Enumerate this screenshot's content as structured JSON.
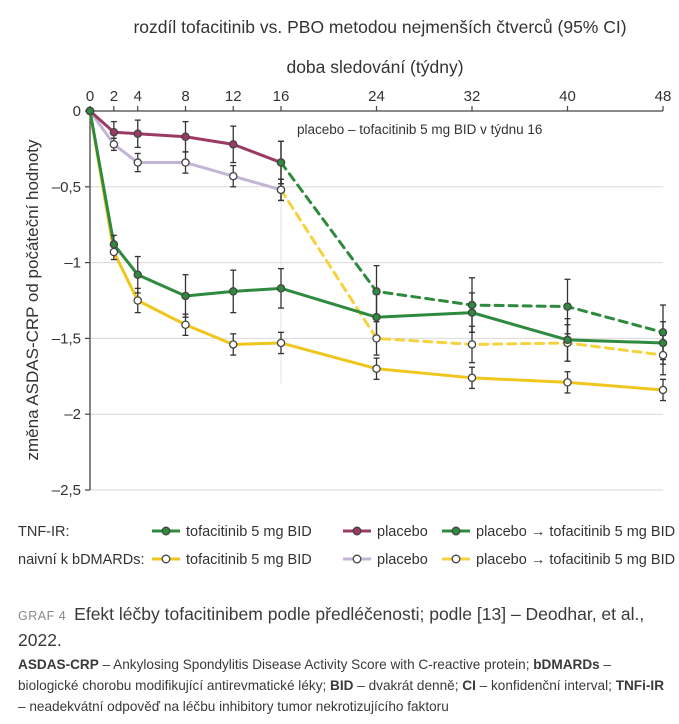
{
  "chart_data": {
    "type": "line",
    "title": "rozdíl tofacitinib vs. PBO metodou nejmenších čtverců (95% CI)",
    "xlabel": "doba sledování (týdny)",
    "ylabel": "změna ASDAS-CRP od počáteční hodnoty",
    "xlim": [
      0,
      48
    ],
    "ylim": [
      -2.5,
      0
    ],
    "x_ticks": [
      0,
      2,
      4,
      8,
      12,
      16,
      24,
      32,
      40,
      48
    ],
    "y_ticks": [
      0,
      -0.5,
      -1,
      -1.5,
      -2,
      -2.5
    ],
    "y_tick_labels": [
      "0",
      "–0,5",
      "–1",
      "–1,5",
      "–2",
      "–2,5"
    ],
    "annotation": "placebo – tofacitinib 5 mg BID v týdnu 16",
    "series": [
      {
        "name": "TNF-IR: tofacitinib 5 mg BID",
        "group": "TNF-IR",
        "color": "#2e8b3e",
        "dashed": false,
        "marker": "#2e8b3e",
        "x": [
          0,
          2,
          4,
          8,
          12,
          16,
          24,
          32,
          40,
          48
        ],
        "y": [
          0,
          -0.88,
          -1.08,
          -1.22,
          -1.19,
          -1.17,
          -1.36,
          -1.33,
          -1.51,
          -1.53
        ],
        "err": [
          0,
          0.06,
          0.12,
          0.14,
          0.14,
          0.13,
          0.15,
          0.13,
          0.14,
          0.14
        ]
      },
      {
        "name": "TNF-IR: placebo",
        "group": "TNF-IR",
        "color": "#9b3b63",
        "dashed": false,
        "marker": "#9b3b63",
        "x": [
          0,
          2,
          4,
          8,
          12,
          16
        ],
        "y": [
          0,
          -0.14,
          -0.15,
          -0.17,
          -0.22,
          -0.34
        ],
        "err": [
          0,
          0.07,
          0.09,
          0.1,
          0.12,
          0.14
        ]
      },
      {
        "name": "TNF-IR: placebo → tofacitinib 5 mg BID",
        "group": "TNF-IR",
        "color": "#2e8b3e",
        "dashed": true,
        "marker": "#2e8b3e",
        "x": [
          16,
          24,
          32,
          40,
          48
        ],
        "y": [
          -0.34,
          -1.19,
          -1.28,
          -1.29,
          -1.46
        ],
        "err": [
          0.14,
          0.17,
          0.18,
          0.18,
          0.18
        ]
      },
      {
        "name": "naivní k bDMARDs: tofacitinib 5 mg BID",
        "group": "naivní k bDMARDs",
        "color": "#f0c61c",
        "dashed": false,
        "marker": "#ffffff",
        "x": [
          0,
          2,
          4,
          8,
          12,
          16,
          24,
          32,
          40,
          48
        ],
        "y": [
          0,
          -0.93,
          -1.25,
          -1.41,
          -1.54,
          -1.53,
          -1.7,
          -1.76,
          -1.79,
          -1.84
        ],
        "err": [
          0,
          0.05,
          0.08,
          0.07,
          0.07,
          0.07,
          0.07,
          0.07,
          0.07,
          0.07
        ]
      },
      {
        "name": "naivní k bDMARDs: placebo",
        "group": "naivní k bDMARDs",
        "color": "#c4b4d6",
        "dashed": false,
        "marker": "#ffffff",
        "x": [
          0,
          2,
          4,
          8,
          12,
          16
        ],
        "y": [
          0,
          -0.22,
          -0.34,
          -0.34,
          -0.43,
          -0.52
        ],
        "err": [
          0,
          0.04,
          0.06,
          0.07,
          0.07,
          0.07
        ]
      },
      {
        "name": "naivní k bDMARDs: placebo → tofacitinib 5 mg BID",
        "group": "naivní k bDMARDs",
        "color": "#f5d23e",
        "dashed": true,
        "marker": "#ffffff",
        "x": [
          16,
          24,
          32,
          40,
          48
        ],
        "y": [
          -0.52,
          -1.5,
          -1.54,
          -1.53,
          -1.61
        ],
        "err": [
          0.07,
          0.11,
          0.12,
          0.12,
          0.13
        ]
      }
    ],
    "legend": {
      "placement": "bottom",
      "rows": [
        {
          "label": "TNF-IR:",
          "entries": [
            {
              "text": "tofacitinib 5 mg BID",
              "color": "#2e8b3e",
              "fill": "#2e8b3e"
            },
            {
              "text": "placebo",
              "color": "#9b3b63",
              "fill": "#9b3b63"
            },
            {
              "text": "placebo → tofacitinib 5 mg BID",
              "color": "#2e8b3e",
              "fill": "#2e8b3e"
            }
          ]
        },
        {
          "label": "naivní k bDMARDs:",
          "entries": [
            {
              "text": "tofacitinib 5 mg BID",
              "color": "#f0c61c",
              "fill": "#ffffff"
            },
            {
              "text": "placebo",
              "color": "#c4b4d6",
              "fill": "#ffffff"
            },
            {
              "text": "placebo → tofacitinib 5 mg BID",
              "color": "#f5d23e",
              "fill": "#ffffff"
            }
          ]
        }
      ]
    }
  },
  "caption": {
    "number": "GRAF 4",
    "text": "Efekt léčby tofacitinibem podle předléčenosti; podle [13] – Deodhar, et al., 2022."
  },
  "notes": [
    {
      "abbr": "ASDAS-CRP",
      "def": " – Ankylosing Spondylitis Disease Activity Score with C-reactive protein; "
    },
    {
      "abbr": "bDMARDs",
      "def": " – biologické chorobu modifikující antirevmatické léky; "
    },
    {
      "abbr": "BID",
      "def": " – dvakrát denně; "
    },
    {
      "abbr": "CI",
      "def": " – konfidenční interval; "
    },
    {
      "abbr": "TNFi-IR",
      "def": " – neadekvátní odpověď na léčbu inhibitory tumor nekrotizujícího faktoru"
    }
  ]
}
